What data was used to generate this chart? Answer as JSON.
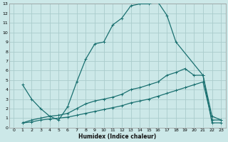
{
  "xlabel": "Humidex (Indice chaleur)",
  "bg_color": "#cce8e8",
  "grid_color": "#aacccc",
  "line_color": "#1a7070",
  "xlim": [
    -0.5,
    23.5
  ],
  "ylim": [
    0,
    13
  ],
  "line1_x": [
    1,
    2,
    3,
    4,
    5,
    6,
    7,
    8,
    9,
    10,
    11,
    12,
    13,
    14,
    15,
    16,
    17,
    18,
    21,
    22,
    23
  ],
  "line1_y": [
    4.5,
    3.0,
    2.0,
    1.2,
    0.8,
    2.2,
    4.8,
    7.2,
    8.8,
    9.0,
    10.8,
    11.5,
    12.8,
    13.0,
    13.0,
    13.2,
    11.8,
    9.0,
    5.5,
    1.2,
    0.8
  ],
  "line2_x": [
    1,
    2,
    3,
    4,
    5,
    6,
    7,
    8,
    9,
    10,
    11,
    12,
    13,
    14,
    15,
    16,
    17,
    18,
    19,
    20,
    21,
    22,
    23
  ],
  "line2_y": [
    0.5,
    0.8,
    1.0,
    1.2,
    1.3,
    1.5,
    2.0,
    2.5,
    2.8,
    3.0,
    3.2,
    3.5,
    4.0,
    4.2,
    4.5,
    4.8,
    5.5,
    5.8,
    6.2,
    5.5,
    5.5,
    0.5,
    0.5
  ],
  "line3_x": [
    1,
    2,
    3,
    4,
    5,
    6,
    7,
    8,
    9,
    10,
    11,
    12,
    13,
    14,
    15,
    16,
    17,
    18,
    19,
    20,
    21,
    22,
    23
  ],
  "line3_y": [
    0.5,
    0.6,
    0.8,
    0.9,
    1.0,
    1.1,
    1.3,
    1.5,
    1.7,
    1.9,
    2.1,
    2.3,
    2.6,
    2.8,
    3.0,
    3.3,
    3.6,
    3.9,
    4.2,
    4.5,
    4.8,
    0.8,
    0.8
  ]
}
